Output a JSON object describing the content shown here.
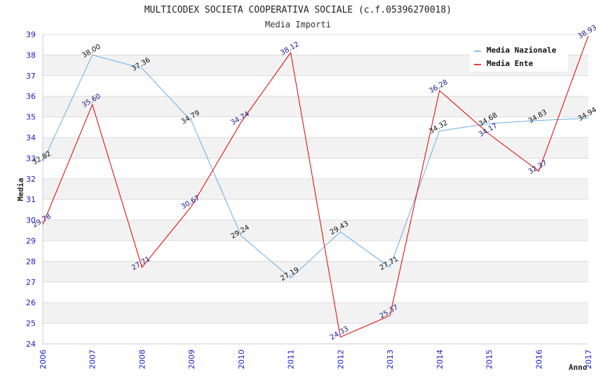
{
  "chart_data": {
    "type": "line",
    "title": "MULTICODEX SOCIETA COOPERATIVA SOCIALE (c.f.05396270018)",
    "subtitle": "Media Importi",
    "xlabel": "Anno",
    "ylabel": "Media",
    "categories": [
      "2006",
      "2007",
      "2008",
      "2009",
      "2010",
      "2011",
      "2012",
      "2013",
      "2014",
      "2015",
      "2016",
      "2017"
    ],
    "ylim": [
      24,
      39
    ],
    "yticks": [
      "24",
      "25",
      "26",
      "27",
      "28",
      "29",
      "30",
      "31",
      "32",
      "33",
      "34",
      "35",
      "36",
      "37",
      "38",
      "39"
    ],
    "grid": true,
    "legend_position": "top-right",
    "series": [
      {
        "name": "Media Nazionale",
        "color": "#6aaee6",
        "label_color": "#111111",
        "values": [
          32.82,
          38.0,
          37.36,
          34.79,
          29.24,
          27.19,
          29.43,
          27.71,
          34.32,
          34.68,
          34.83,
          34.94
        ],
        "labels": [
          "32.82",
          "38.00",
          "37.36",
          "34.79",
          "29.24",
          "27.19",
          "29.43",
          "27.71",
          "34.32",
          "34.68",
          "34.83",
          "34.94"
        ]
      },
      {
        "name": "Media Ente",
        "color": "#e00000",
        "label_color": "#1a1a8c",
        "values": [
          29.78,
          35.6,
          27.71,
          30.67,
          34.74,
          38.12,
          24.33,
          25.37,
          36.28,
          34.17,
          32.37,
          38.93
        ],
        "labels": [
          "29.78",
          "35.60",
          "27.71",
          "30.67",
          "34.74",
          "38.12",
          "24.33",
          "25.37",
          "36.28",
          "34.17",
          "32.37",
          "38.93"
        ]
      }
    ],
    "colors": {
      "tick_text": "#1a1acc",
      "band": "#f2f2f2",
      "grid": "#dddddd",
      "axis": "#cccccc"
    }
  }
}
